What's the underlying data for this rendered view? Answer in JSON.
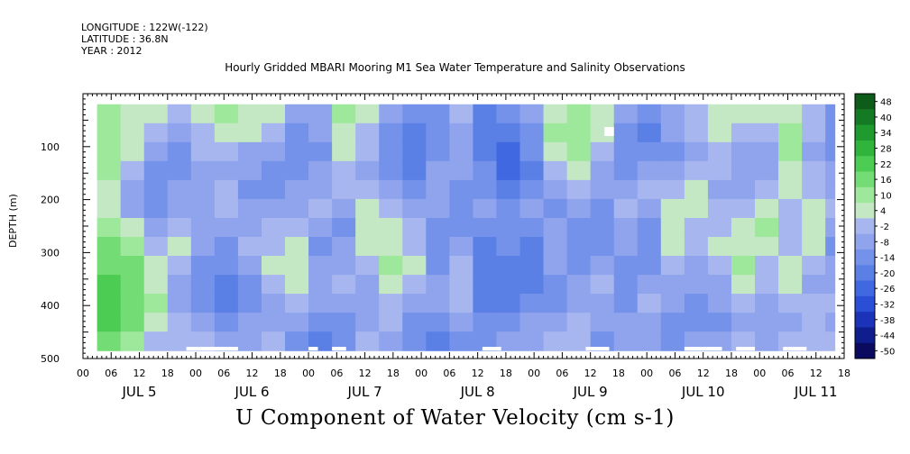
{
  "header": {
    "longitude": "LONGITUDE : 122W(-122)",
    "latitude": "LATITUDE : 36.8N",
    "year": "YEAR : 2012"
  },
  "chart_data": {
    "type": "heatmap",
    "title": "Hourly Gridded MBARI Mooring M1 Sea Water Temperature and Salinity Observations",
    "xlabel": "U Component of Water Velocity (cm s-1)",
    "ylabel": "DEPTH (m)",
    "x_range_hours": [
      0,
      162
    ],
    "x_hour_ticks": [
      "00",
      "06",
      "12",
      "18",
      "00",
      "06",
      "12",
      "18",
      "00",
      "06",
      "12",
      "18",
      "00",
      "06",
      "12",
      "18",
      "00",
      "06",
      "12",
      "18",
      "00",
      "06",
      "12",
      "18",
      "00",
      "06",
      "12",
      "18"
    ],
    "day_labels": [
      "JUL  5",
      "JUL  6",
      "JUL  7",
      "JUL  8",
      "JUL  9",
      "JUL 10",
      "JUL 11"
    ],
    "y_range": [
      0,
      500
    ],
    "y_ticks": [
      100,
      200,
      300,
      400,
      500
    ],
    "y_inverted": true,
    "data_depth_range": [
      20,
      485
    ],
    "data_time_start_hour": 3,
    "colorbar": {
      "labels": [
        "48",
        "40",
        "34",
        "28",
        "22",
        "16",
        "10",
        "4",
        "-2",
        "-8",
        "-14",
        "-20",
        "-26",
        "-32",
        "-38",
        "-44",
        "-50"
      ],
      "levels": [
        -50,
        -44,
        -38,
        -32,
        -26,
        -20,
        -14,
        -8,
        -2,
        4,
        10,
        16,
        22,
        28,
        34,
        40,
        48
      ],
      "colors": [
        "#0a0a5e",
        "#0f1e8c",
        "#1a33b8",
        "#2a4fd6",
        "#4068e0",
        "#5a80e6",
        "#7592ea",
        "#8fa4ec",
        "#a8b6f0",
        "#c4e8c4",
        "#9ee89c",
        "#74dc74",
        "#4ccc52",
        "#30b43c",
        "#1e9a2e",
        "#147a24",
        "#0d5c1a"
      ]
    },
    "columns": [
      {
        "hour": 3,
        "values": [
          10,
          12,
          14,
          10,
          8,
          6,
          14,
          18,
          20,
          22,
          24,
          22,
          16
        ]
      },
      {
        "hour": 8,
        "values": [
          8,
          6,
          4,
          0,
          -6,
          -4,
          6,
          12,
          16,
          18,
          20,
          16,
          10
        ]
      },
      {
        "hour": 13,
        "values": [
          4,
          0,
          -6,
          -10,
          -14,
          -10,
          -4,
          2,
          6,
          8,
          10,
          4,
          0
        ]
      },
      {
        "hour": 18,
        "values": [
          -2,
          -8,
          -14,
          -12,
          -8,
          -4,
          -2,
          4,
          -2,
          -8,
          -6,
          -2,
          2
        ]
      },
      {
        "hour": 23,
        "values": [
          6,
          2,
          -2,
          -6,
          -8,
          -6,
          -4,
          -6,
          -10,
          -14,
          -10,
          -4,
          -2
        ]
      },
      {
        "hour": 28,
        "values": [
          10,
          8,
          2,
          -4,
          -2,
          0,
          -6,
          -10,
          -14,
          -18,
          -16,
          -10,
          -6
        ]
      },
      {
        "hour": 33,
        "values": [
          8,
          4,
          -4,
          -8,
          -10,
          -8,
          -4,
          -2,
          -6,
          -10,
          -12,
          -8,
          -4
        ]
      },
      {
        "hour": 38,
        "values": [
          4,
          -2,
          -8,
          -12,
          -10,
          -6,
          -2,
          2,
          4,
          0,
          -4,
          -6,
          -2
        ]
      },
      {
        "hour": 43,
        "values": [
          -4,
          -10,
          -14,
          -12,
          -8,
          -4,
          2,
          6,
          8,
          4,
          -2,
          -8,
          -10
        ]
      },
      {
        "hour": 48,
        "values": [
          -6,
          -8,
          -10,
          -8,
          -4,
          -2,
          -6,
          -10,
          -8,
          -4,
          -8,
          -14,
          -16
        ]
      },
      {
        "hour": 53,
        "values": [
          10,
          8,
          4,
          2,
          -2,
          -6,
          -10,
          -8,
          -4,
          0,
          -4,
          -10,
          -12
        ]
      },
      {
        "hour": 58,
        "values": [
          6,
          2,
          -2,
          -4,
          2,
          6,
          8,
          4,
          -2,
          -6,
          -8,
          -6,
          -2
        ]
      },
      {
        "hour": 63,
        "values": [
          -4,
          -10,
          -14,
          -10,
          -6,
          -2,
          4,
          8,
          10,
          6,
          2,
          -2,
          -4
        ]
      },
      {
        "hour": 68,
        "values": [
          -14,
          -18,
          -20,
          -16,
          -10,
          -6,
          -2,
          2,
          4,
          2,
          -4,
          -10,
          -14
        ]
      },
      {
        "hour": 73,
        "values": [
          -10,
          -12,
          -10,
          -6,
          -4,
          -8,
          -12,
          -14,
          -10,
          -6,
          -8,
          -12,
          -16
        ]
      },
      {
        "hour": 78,
        "values": [
          -2,
          -4,
          -6,
          -8,
          -10,
          -12,
          -10,
          -6,
          -2,
          2,
          -2,
          -8,
          -12
        ]
      },
      {
        "hour": 83,
        "values": [
          -18,
          -20,
          -18,
          -14,
          -10,
          -8,
          -12,
          -16,
          -18,
          -20,
          -18,
          -14,
          -10
        ]
      },
      {
        "hour": 88,
        "values": [
          -14,
          -18,
          -22,
          -24,
          -20,
          -14,
          -10,
          -12,
          -16,
          -18,
          -16,
          -12,
          -8
        ]
      },
      {
        "hour": 93,
        "values": [
          -6,
          -10,
          -14,
          -16,
          -12,
          -8,
          -12,
          -18,
          -20,
          -16,
          -10,
          -6,
          -4
        ]
      },
      {
        "hour": 98,
        "values": [
          8,
          10,
          6,
          0,
          -6,
          -10,
          -8,
          -4,
          -8,
          -14,
          -12,
          -6,
          -2
        ]
      },
      {
        "hour": 103,
        "values": [
          10,
          14,
          10,
          4,
          -2,
          -6,
          -10,
          -12,
          -10,
          -6,
          -4,
          -2,
          0
        ]
      },
      {
        "hour": 108,
        "values": [
          8,
          6,
          2,
          -4,
          -8,
          -12,
          -14,
          -10,
          -6,
          -2,
          -4,
          -8,
          -10
        ]
      },
      {
        "hour": 113,
        "values": [
          -8,
          -12,
          -14,
          -10,
          -4,
          0,
          -4,
          -8,
          -12,
          -14,
          -10,
          -6,
          -4
        ]
      },
      {
        "hour": 118,
        "values": [
          -12,
          -16,
          -14,
          -8,
          -2,
          -6,
          -10,
          -12,
          -10,
          -6,
          -2,
          -6,
          -8
        ]
      },
      {
        "hour": 123,
        "values": [
          -4,
          -8,
          -10,
          -6,
          2,
          6,
          8,
          4,
          0,
          -4,
          -8,
          -12,
          -10
        ]
      },
      {
        "hour": 128,
        "values": [
          2,
          -2,
          -4,
          0,
          4,
          6,
          2,
          -2,
          -6,
          -8,
          -10,
          -12,
          -8
        ]
      },
      {
        "hour": 133,
        "values": [
          6,
          4,
          2,
          -2,
          -4,
          -2,
          2,
          6,
          2,
          -4,
          -8,
          -10,
          -6
        ]
      },
      {
        "hour": 138,
        "values": [
          8,
          2,
          -4,
          -8,
          -6,
          -2,
          4,
          8,
          10,
          6,
          0,
          -4,
          -2
        ]
      },
      {
        "hour": 143,
        "values": [
          4,
          -2,
          -6,
          -4,
          2,
          8,
          10,
          6,
          2,
          -2,
          -4,
          -6,
          -4
        ]
      },
      {
        "hour": 148,
        "values": [
          6,
          10,
          12,
          8,
          4,
          0,
          -2,
          2,
          6,
          4,
          -2,
          -4,
          -2
        ]
      },
      {
        "hour": 153,
        "values": [
          2,
          -2,
          -4,
          -2,
          2,
          4,
          6,
          4,
          0,
          -4,
          -2,
          0,
          2
        ]
      },
      {
        "hour": 158,
        "values": [
          -10,
          -14,
          -12,
          -8,
          -4,
          -2,
          -6,
          -10,
          -8,
          -4,
          -2,
          -4,
          -2
        ]
      }
    ],
    "grid": false,
    "legend_position": "right"
  }
}
